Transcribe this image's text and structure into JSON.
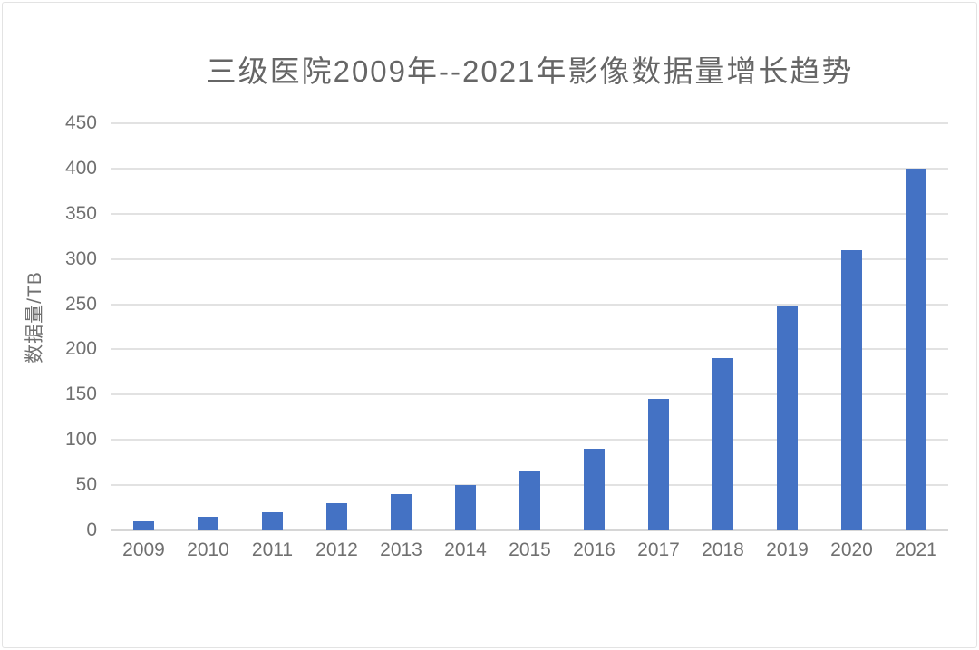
{
  "chart_data": {
    "type": "bar",
    "title": "三级医院2009年--2021年影像数据量增长趋势",
    "ylabel": "数据量/TB",
    "xlabel": "",
    "categories": [
      "2009",
      "2010",
      "2011",
      "2012",
      "2013",
      "2014",
      "2015",
      "2016",
      "2017",
      "2018",
      "2019",
      "2020",
      "2021"
    ],
    "values": [
      10,
      15,
      20,
      30,
      40,
      50,
      65,
      90,
      145,
      190,
      248,
      310,
      400
    ],
    "ylim": [
      0,
      450
    ],
    "yticks": [
      0,
      50,
      100,
      150,
      200,
      250,
      300,
      350,
      400,
      450
    ],
    "grid": "horizontal",
    "legend_position": "none",
    "colors": {
      "bar": "#4472C4",
      "gridline": "#E2E2E2",
      "axis_line": "#D6D6D6",
      "title_text": "#666666",
      "tick_text": "#707070",
      "frame_border": "#E3E3E3"
    }
  }
}
